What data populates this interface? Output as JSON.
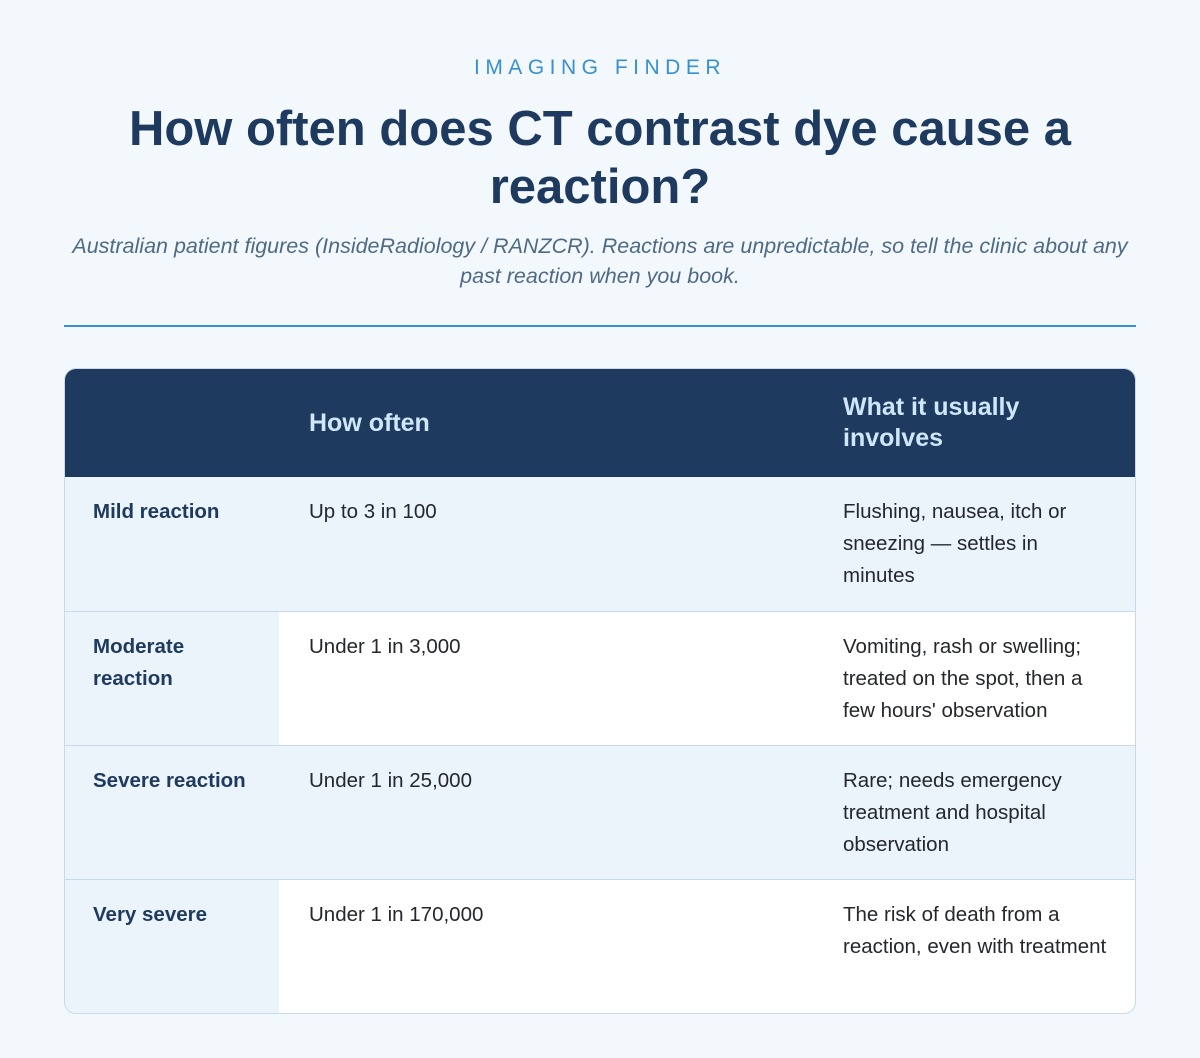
{
  "header": {
    "kicker": "IMAGING FINDER",
    "title": "How often does CT contrast dye cause a reaction?",
    "subtitle": "Australian patient figures (InsideRadiology / RANZCR). Reactions are unpredictable, so tell the clinic about any past reaction when you book."
  },
  "table": {
    "columns": [
      "",
      "How often",
      "What it usually involves"
    ],
    "rows": [
      {
        "category": "Mild reaction",
        "frequency": "Up to 3 in 100",
        "involves": "Flushing, nausea, itch or sneezing — settles in minutes"
      },
      {
        "category": "Moderate reaction",
        "frequency": "Under 1 in 3,000",
        "involves": "Vomiting, rash or swelling; treated on the spot, then a few hours' observation"
      },
      {
        "category": "Severe reaction",
        "frequency": "Under 1 in 25,000",
        "involves": "Rare; needs emergency treatment and hospital observation"
      },
      {
        "category": "Very severe",
        "frequency": "Under 1 in 170,000",
        "involves": "The risk of death from a reaction, even with treatment"
      }
    ]
  },
  "colors": {
    "background": "#f3f8fc",
    "accent": "#3a8fd0",
    "navy": "#1e3a5f",
    "header_text": "#cfe6fb",
    "row_tint": "#ebf3fb"
  }
}
